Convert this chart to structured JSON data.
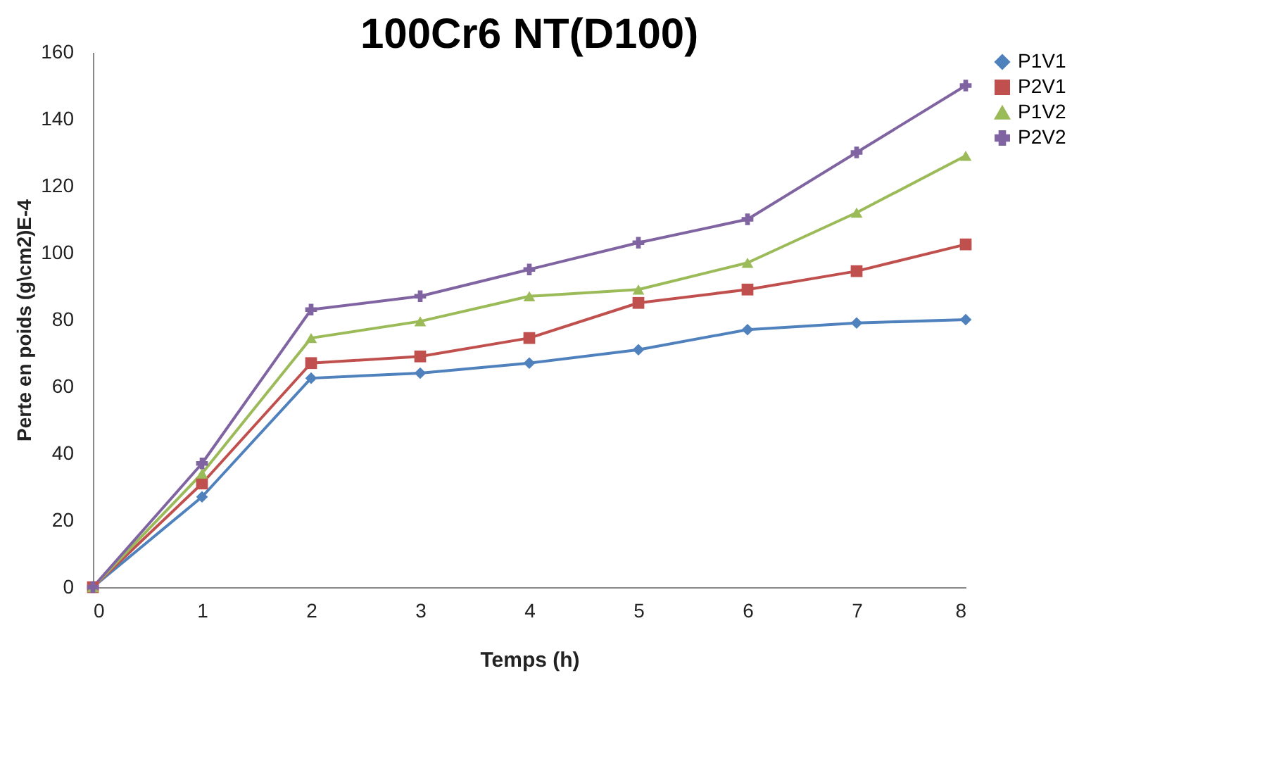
{
  "chart_data": {
    "type": "line",
    "title": "100Cr6 NT(D100)",
    "xlabel": "Temps (h)",
    "ylabel": "Perte en poids (g\\cm2)E-4",
    "x": [
      0,
      1,
      2,
      3,
      4,
      5,
      6,
      7,
      8
    ],
    "xlim": [
      0,
      8
    ],
    "xticks": [
      0,
      1,
      2,
      3,
      4,
      5,
      6,
      7,
      8
    ],
    "ylim": [
      0,
      160
    ],
    "yticks": [
      0,
      20,
      40,
      60,
      80,
      100,
      120,
      140,
      160
    ],
    "grid": false,
    "legend": "right",
    "line_style": "solid",
    "series": [
      {
        "name": "P1V1",
        "color": "#4f81bd",
        "marker": "diamond",
        "values": [
          0,
          27,
          62.5,
          64,
          67,
          71,
          77,
          79,
          80
        ]
      },
      {
        "name": "P2V1",
        "color": "#c0504d",
        "marker": "square",
        "values": [
          0,
          31,
          67,
          69,
          74.5,
          85,
          89,
          94.5,
          102.5
        ]
      },
      {
        "name": "P1V2",
        "color": "#9bbb59",
        "marker": "triangle",
        "values": [
          0,
          34,
          74.5,
          79.5,
          87,
          89,
          97,
          112,
          129
        ]
      },
      {
        "name": "P2V2",
        "color": "#8064a2",
        "marker": "cross",
        "values": [
          0,
          37,
          83,
          87,
          95,
          103,
          110,
          130,
          150
        ]
      }
    ]
  }
}
